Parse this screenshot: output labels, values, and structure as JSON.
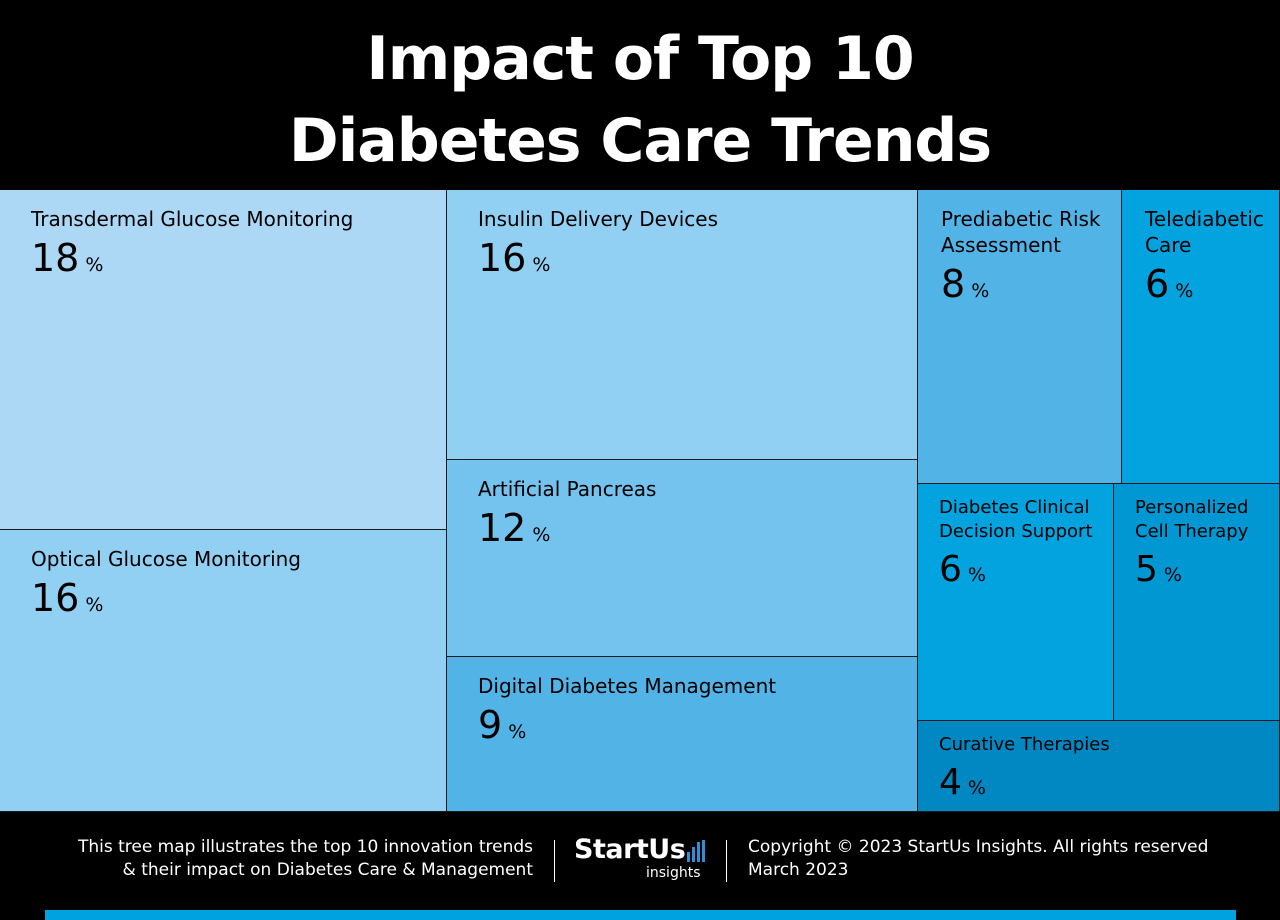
{
  "title_lines": [
    "Impact of Top 10",
    "Diabetes Care Trends"
  ],
  "chart_data": {
    "type": "treemap",
    "title": "Impact of Top 10 Diabetes Care Trends",
    "unit": "%",
    "items": [
      {
        "label": "Transdermal Glucose Monitoring",
        "value": 18,
        "color": "#acd8f6"
      },
      {
        "label": "Optical Glucose Monitoring",
        "value": 16,
        "color": "#91cff3"
      },
      {
        "label": "Insulin Delivery Devices",
        "value": 16,
        "color": "#91cff3"
      },
      {
        "label": "Artificial Pancreas",
        "value": 12,
        "color": "#73c3ee"
      },
      {
        "label": "Digital Diabetes Management",
        "value": 9,
        "color": "#52b3e6"
      },
      {
        "label": "Prediabetic Risk\nAssessment",
        "value": 8,
        "color": "#52b3e6"
      },
      {
        "label": "Telediabetic\nCare",
        "value": 6,
        "color": "#02a3df"
      },
      {
        "label": "Diabetes Clinical\nDecision Support",
        "value": 6,
        "color": "#02a3df"
      },
      {
        "label": "Personalized\nCell Therapy",
        "value": 5,
        "color": "#0097d3"
      },
      {
        "label": "Curative Therapies",
        "value": 4,
        "color": "#0188c2"
      }
    ]
  },
  "footer": {
    "description_lines": [
      "This tree map illustrates the top 10 innovation trends",
      "& their impact on Diabetes Care & Management"
    ],
    "logo_main": "StartUs",
    "logo_sub": "insights",
    "copyright_lines": [
      "Copyright © 2023 StartUs Insights. All rights reserved",
      "March 2023"
    ],
    "accent_color": "#00a3e0"
  }
}
